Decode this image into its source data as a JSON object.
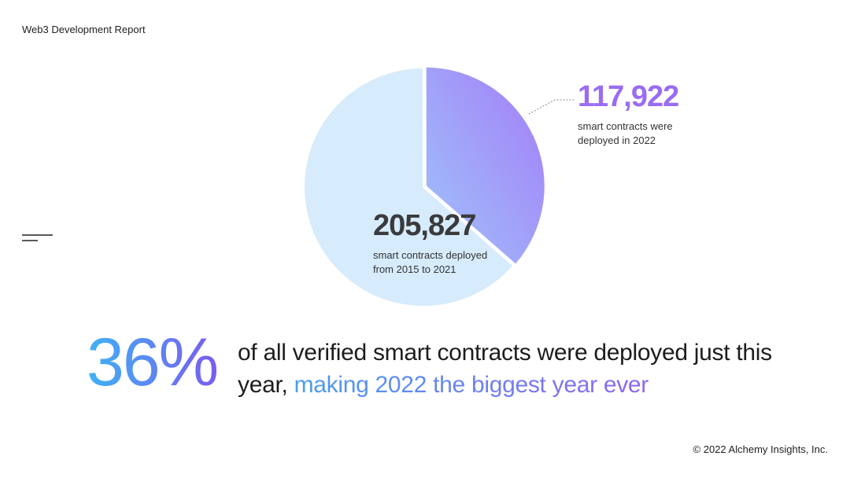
{
  "header": {
    "title": "Web3 Development Report"
  },
  "chart_data": {
    "type": "pie",
    "categories": [
      "smart contracts were deployed in 2022",
      "smart contracts deployed from 2015 to 2021"
    ],
    "values": [
      117922,
      205827
    ],
    "value_labels": [
      "117,922",
      "205,827"
    ],
    "colors": [
      "#a47cf6",
      "#d6ebfb"
    ]
  },
  "headline": {
    "stat": "36%",
    "text": "of all verified smart contracts were deployed just this year,",
    "highlight": "making 2022 the biggest year ever"
  },
  "footer": {
    "copyright": "© 2022 Alchemy Insights, Inc."
  }
}
